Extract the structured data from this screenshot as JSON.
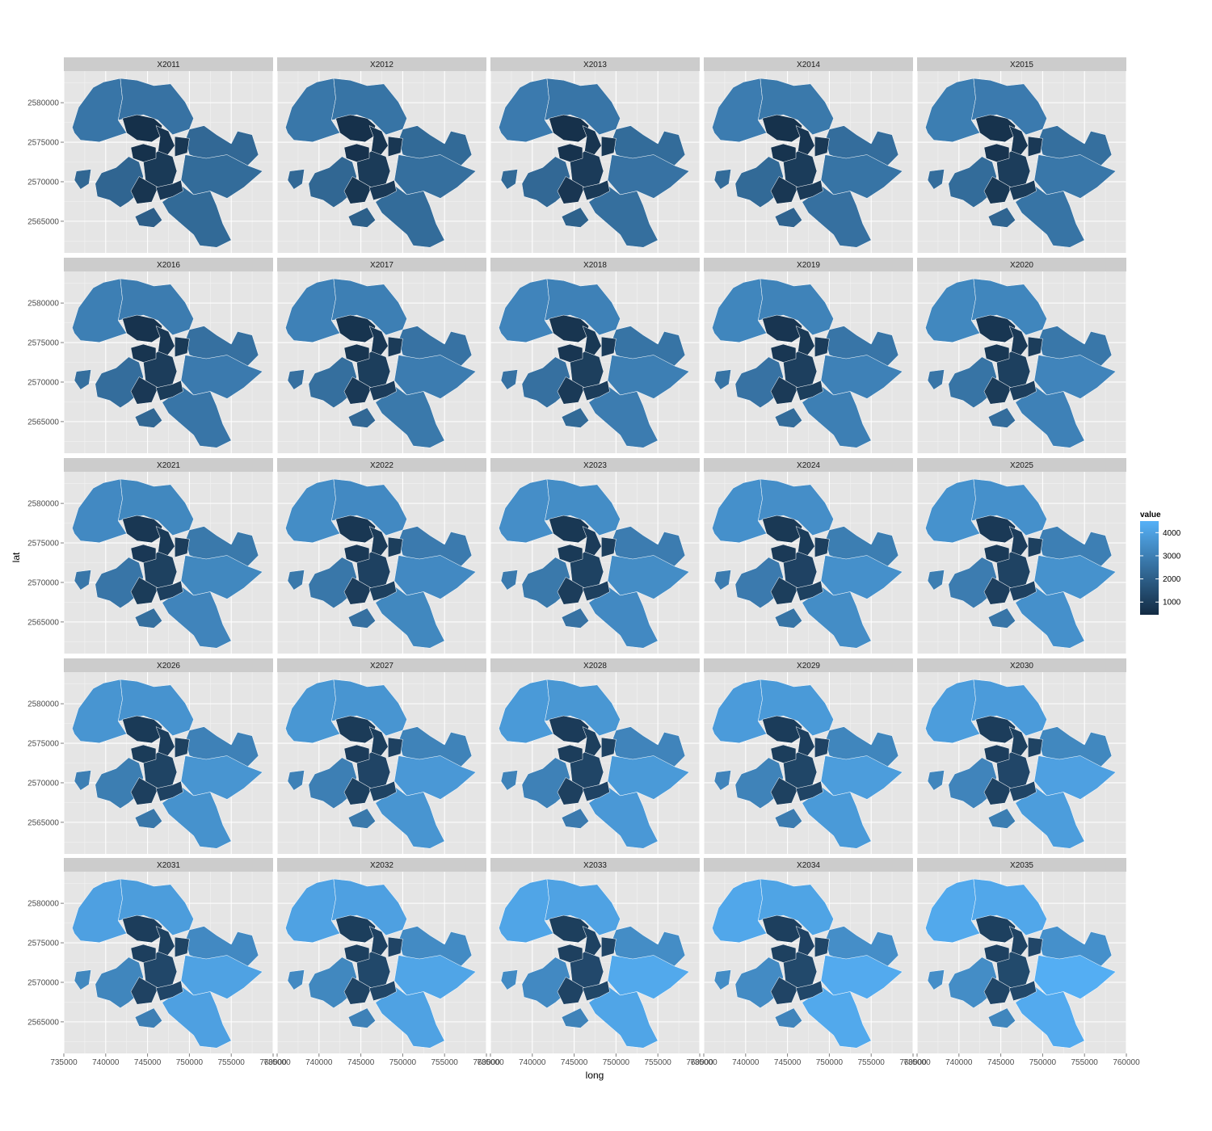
{
  "chart_data": {
    "type": "choropleth-facets",
    "xlabel": "long",
    "ylabel": "lat",
    "xlim": [
      735000,
      760000
    ],
    "ylim": [
      2561000,
      2584000
    ],
    "x_ticks": [
      "735000",
      "740000",
      "745000",
      "750000",
      "755000",
      "760000"
    ],
    "y_ticks": [
      "2565000",
      "2570000",
      "2575000",
      "2580000"
    ],
    "grid": true,
    "legend": {
      "title": "value",
      "ticks": [
        "1000",
        "2000",
        "3000",
        "4000"
      ],
      "range": [
        450,
        4500
      ],
      "low_color": "#132B43",
      "high_color": "#56B1F7",
      "placement": "right"
    },
    "facets": [
      {
        "label": "X2011",
        "v": [
          2700,
          2600,
          2300,
          2400,
          2350,
          2200,
          2250,
          2000,
          600,
          700,
          800,
          900,
          750,
          850,
          650
        ]
      },
      {
        "label": "X2012",
        "v": [
          2750,
          2650,
          2350,
          2500,
          2400,
          2250,
          2300,
          2050,
          620,
          720,
          820,
          920,
          770,
          870,
          670
        ]
      },
      {
        "label": "X2013",
        "v": [
          2850,
          2700,
          2400,
          2600,
          2500,
          2300,
          2350,
          2100,
          640,
          740,
          840,
          940,
          790,
          890,
          690
        ]
      },
      {
        "label": "X2014",
        "v": [
          2900,
          2800,
          2450,
          2650,
          2550,
          2350,
          2400,
          2150,
          660,
          760,
          860,
          960,
          810,
          910,
          710
        ]
      },
      {
        "label": "X2015",
        "v": [
          2950,
          2850,
          2500,
          2750,
          2650,
          2400,
          2450,
          2200,
          680,
          780,
          880,
          980,
          830,
          930,
          730
        ]
      },
      {
        "label": "X2016",
        "v": [
          3000,
          2900,
          2550,
          2850,
          2700,
          2450,
          2500,
          2250,
          700,
          800,
          900,
          1000,
          850,
          950,
          750
        ]
      },
      {
        "label": "X2017",
        "v": [
          3050,
          3000,
          2600,
          2900,
          2800,
          2500,
          2550,
          2300,
          720,
          820,
          920,
          1020,
          870,
          970,
          770
        ]
      },
      {
        "label": "X2018",
        "v": [
          3150,
          3050,
          2650,
          3000,
          2900,
          2550,
          2600,
          2350,
          740,
          840,
          940,
          1040,
          890,
          990,
          790
        ]
      },
      {
        "label": "X2019",
        "v": [
          3200,
          3100,
          2700,
          3050,
          3000,
          2600,
          2650,
          2400,
          760,
          860,
          960,
          1060,
          910,
          1010,
          810
        ]
      },
      {
        "label": "X2020",
        "v": [
          3250,
          3200,
          2750,
          3150,
          3050,
          2650,
          2700,
          2450,
          780,
          880,
          980,
          1080,
          930,
          1030,
          830
        ]
      },
      {
        "label": "X2021",
        "v": [
          3300,
          3250,
          2800,
          3250,
          3150,
          2700,
          2750,
          2500,
          800,
          900,
          1000,
          1100,
          950,
          1050,
          850
        ]
      },
      {
        "label": "X2022",
        "v": [
          3400,
          3300,
          2850,
          3300,
          3250,
          2750,
          2800,
          2550,
          820,
          920,
          1020,
          1120,
          970,
          1070,
          870
        ]
      },
      {
        "label": "X2023",
        "v": [
          3450,
          3400,
          2900,
          3400,
          3300,
          2800,
          2850,
          2600,
          840,
          940,
          1040,
          1140,
          990,
          1090,
          890
        ]
      },
      {
        "label": "X2024",
        "v": [
          3500,
          3450,
          2950,
          3500,
          3400,
          2850,
          2900,
          2650,
          860,
          960,
          1060,
          1160,
          1010,
          1110,
          910
        ]
      },
      {
        "label": "X2025",
        "v": [
          3550,
          3500,
          3000,
          3550,
          3500,
          2900,
          2950,
          2700,
          880,
          980,
          1080,
          1180,
          1030,
          1130,
          930
        ]
      },
      {
        "label": "X2026",
        "v": [
          3650,
          3600,
          3050,
          3650,
          3550,
          2950,
          3000,
          2750,
          900,
          1000,
          1100,
          1200,
          1050,
          1150,
          950
        ]
      },
      {
        "label": "X2027",
        "v": [
          3700,
          3650,
          3100,
          3750,
          3650,
          3000,
          3050,
          2800,
          920,
          1020,
          1120,
          1220,
          1070,
          1170,
          970
        ]
      },
      {
        "label": "X2028",
        "v": [
          3800,
          3700,
          3150,
          3800,
          3750,
          3050,
          3100,
          2850,
          940,
          1040,
          1140,
          1240,
          1090,
          1190,
          990
        ]
      },
      {
        "label": "X2029",
        "v": [
          3850,
          3800,
          3200,
          3900,
          3800,
          3100,
          3150,
          2900,
          960,
          1060,
          1160,
          1260,
          1110,
          1210,
          1010
        ]
      },
      {
        "label": "X2030",
        "v": [
          3900,
          3850,
          3250,
          4000,
          3900,
          3150,
          3200,
          2950,
          980,
          1080,
          1180,
          1280,
          1130,
          1230,
          1030
        ]
      },
      {
        "label": "X2031",
        "v": [
          4000,
          3900,
          3300,
          4050,
          4000,
          3200,
          3250,
          3000,
          1000,
          1100,
          1200,
          1300,
          1150,
          1250,
          1050
        ]
      },
      {
        "label": "X2032",
        "v": [
          4050,
          4000,
          3350,
          4150,
          4050,
          3250,
          3300,
          3050,
          1020,
          1120,
          1220,
          1320,
          1170,
          1270,
          1070
        ]
      },
      {
        "label": "X2033",
        "v": [
          4150,
          4050,
          3400,
          4250,
          4150,
          3300,
          3350,
          3100,
          1040,
          1140,
          1240,
          1340,
          1190,
          1290,
          1090
        ]
      },
      {
        "label": "X2034",
        "v": [
          4200,
          4100,
          3450,
          4300,
          4250,
          3350,
          3400,
          3150,
          1060,
          1160,
          1260,
          1360,
          1210,
          1310,
          1110
        ]
      },
      {
        "label": "X2035",
        "v": [
          4250,
          4200,
          3500,
          4400,
          4300,
          3400,
          3450,
          3200,
          1080,
          1180,
          1280,
          1380,
          1230,
          1330,
          1130
        ]
      }
    ]
  }
}
